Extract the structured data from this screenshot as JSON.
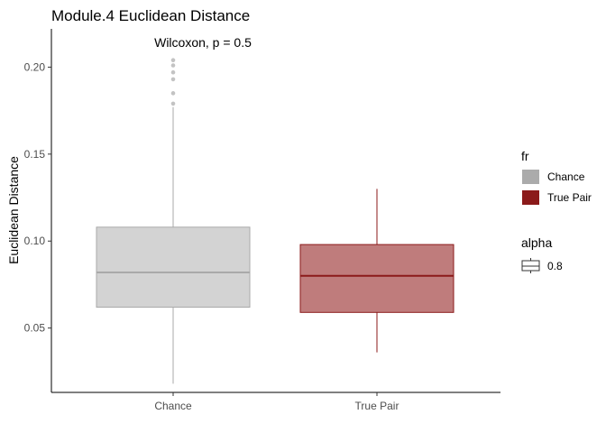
{
  "chart_data": {
    "type": "box",
    "title": "Module.4 Euclidean Distance",
    "annotation": "Wilcoxon, p = 0.5",
    "xlabel": "",
    "ylabel": "Euclidean Distance",
    "ylim": [
      0.013,
      0.222
    ],
    "yticks": [
      "0.05",
      "0.10",
      "0.15",
      "0.20"
    ],
    "categories": [
      "Chance",
      "True Pair"
    ],
    "boxes": [
      {
        "category": "Chance",
        "whisker_low": 0.018,
        "q1": 0.062,
        "median": 0.082,
        "q3": 0.108,
        "whisker_high": 0.177,
        "outliers": [
          0.179,
          0.185,
          0.193,
          0.197,
          0.201,
          0.204
        ],
        "fill": "#D3D3D3",
        "stroke": "#A9A9A9"
      },
      {
        "category": "True Pair",
        "whisker_low": 0.036,
        "q1": 0.059,
        "median": 0.08,
        "q3": 0.098,
        "whisker_high": 0.13,
        "outliers": [],
        "fill": "#BF7C7C",
        "stroke": "#8B1A1A"
      }
    ],
    "grid": false,
    "legend_position": "right",
    "legend": {
      "fill_title": "fr",
      "fill_items": [
        {
          "label": "Chance",
          "color": "#ABABAB"
        },
        {
          "label": "True Pair",
          "color": "#8B1A1A"
        }
      ],
      "alpha_title": "alpha",
      "alpha_items": [
        {
          "label": "0.8"
        }
      ]
    }
  }
}
